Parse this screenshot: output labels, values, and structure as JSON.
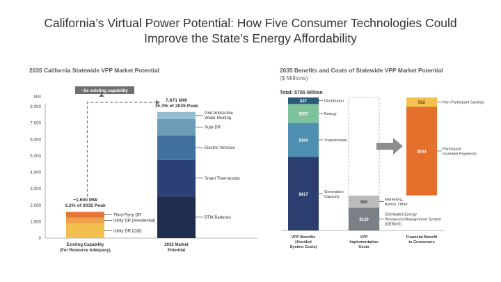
{
  "slide": {
    "title_line1": "California’s Virtual Power Potential: How Five Consumer Technologies Could",
    "title_line2": "Improve the State’s Energy Affordability"
  },
  "chart_data": [
    {
      "type": "bar",
      "stacked": true,
      "title": "2035 California Statewide VPP Market Potential",
      "ylabel": "MW",
      "ylim": [
        0,
        8000
      ],
      "yticks": [
        0,
        1000,
        2000,
        3000,
        4000,
        5000,
        6000,
        7000,
        8000
      ],
      "ytick_labels": [
        "0",
        "1,000",
        "2,000",
        "3,000",
        "4,000",
        "5,000",
        "6,000",
        "7,000",
        "8,000"
      ],
      "categories": [
        "Existing Capability (For Resource Adequacy)",
        "2035 Market Potential"
      ],
      "category_lines": [
        [
          "Existing Capability",
          "(For Resource Adequacy)"
        ],
        [
          "2035 Market",
          "Potential"
        ]
      ],
      "bars": [
        {
          "total_label_lines": [
            "~1,600 MW",
            "3.2% of 2035 Peak"
          ],
          "segments": [
            {
              "name": "Utility DR (C&I)",
              "value": 900,
              "color": "#f2c04f"
            },
            {
              "name": "Utility DR (Residential)",
              "value": 350,
              "color": "#eea24a"
            },
            {
              "name": "Third-Party DR",
              "value": 350,
              "color": "#e4763a"
            }
          ]
        },
        {
          "total_label_lines": [
            "7,671 MW",
            "15.3% of 2035 Peak"
          ],
          "segments": [
            {
              "name": "BTM Batteries",
              "value": 2550,
              "color": "#1f2d4f"
            },
            {
              "name": "Smart Thermostats",
              "value": 2200,
              "color": "#2b4175"
            },
            {
              "name": "Electric Vehicles",
              "value": 1500,
              "color": "#40729d"
            },
            {
              "name": "Auto-DR",
              "value": 1000,
              "color": "#6b9db8"
            },
            {
              "name": "Grid-Interactive Water Heating",
              "value": 421,
              "color": "#93bdd0"
            }
          ]
        }
      ],
      "label_lines": {
        "Grid-Interactive Water Heating": [
          "Grid-Interactive",
          "Water Heating"
        ]
      },
      "annotation": "~5x existing capability"
    },
    {
      "type": "bar",
      "stacked": true,
      "title": "2035 Benefits and Costs of Statewide VPP Market Potential",
      "subtitle": "($ Millions)",
      "total_label": "Total: $755 Million",
      "ylim": [
        0,
        755
      ],
      "categories": [
        "VPP Benefits (Avoided System Costs)",
        "VPP Implementation Costs",
        "Financial Benefit to Consumers"
      ],
      "category_lines": [
        [
          "VPP Benefits",
          "(Avoided",
          "System Costs)"
        ],
        [
          "VPP",
          "Implementation",
          "Costs"
        ],
        [
          "Financial Benefit",
          "to Consumers"
        ]
      ],
      "bars": [
        {
          "segments": [
            {
              "name": "Generation Capacity",
              "value": 417,
              "label": "$417",
              "color": "#2b3e6f"
            },
            {
              "name": "Transmission",
              "value": 194,
              "label": "$194",
              "color": "#4e8fb2"
            },
            {
              "name": "Energy",
              "value": 107,
              "label": "$107",
              "color": "#7dc29b"
            },
            {
              "name": "Distribution",
              "value": 37,
              "label": "$37",
              "color": "#2c5a78"
            }
          ]
        },
        {
          "segments": [
            {
              "name": "Distributed Energy Resources Management System (DERMS)",
              "value": 129,
              "label": "$129",
              "color": "#7b7f86"
            },
            {
              "name": "Marketing, Admin, Other",
              "value": 69,
              "label": "$69",
              "color": "#bcbcbc"
            }
          ]
        },
        {
          "segments": [
            {
              "name": "Participant Incentive Payments",
              "value": 504,
              "label": "$504",
              "color": "#e4702c"
            },
            {
              "name": "Non-Participant Savings",
              "value": 52,
              "label": "$52",
              "color": "#f5c14e"
            }
          ]
        }
      ],
      "label_lines": {
        "Generation Capacity": [
          "Generation",
          "Capacity"
        ],
        "Marketing, Admin, Other": [
          "Marketing,",
          "Admin, Other"
        ],
        "Distributed Energy Resources Management System (DERMS)": [
          "Distributed Energy",
          "Resources Management System",
          "(DERMS)"
        ],
        "Participant Incentive Payments": [
          "Participant",
          "Incentive Payments"
        ]
      }
    }
  ]
}
